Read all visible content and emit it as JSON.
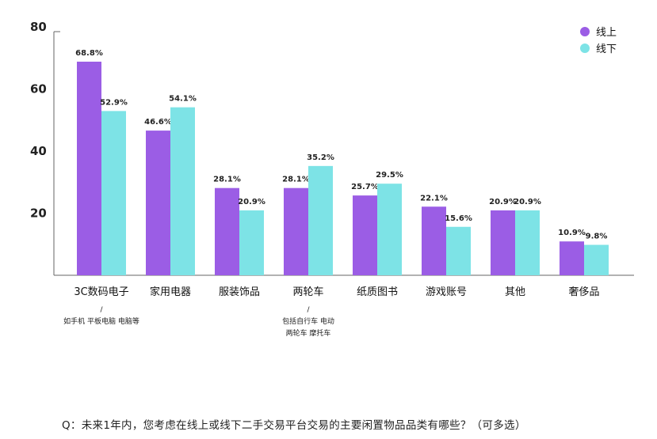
{
  "chart_data": {
    "type": "bar",
    "categories": [
      "3C数码电子",
      "家用电器",
      "服装饰品",
      "两轮车",
      "纸质图书",
      "游戏账号",
      "其他",
      "奢侈品"
    ],
    "category_notes": [
      [
        "/",
        "如手机 平板电脑 电脑等"
      ],
      [],
      [],
      [
        "/",
        "包括自行车 电动",
        "两轮车 摩托车"
      ],
      [],
      [],
      [],
      []
    ],
    "series": [
      {
        "name": "线上",
        "color": "#9b5de5",
        "values": [
          68.8,
          46.6,
          28.1,
          28.1,
          25.7,
          22.1,
          20.9,
          10.9
        ],
        "labels": [
          "68.8%",
          "46.6%",
          "28.1%",
          "28.1%",
          "25.7%",
          "22.1%",
          "20.9%",
          "10.9%"
        ]
      },
      {
        "name": "线下",
        "color": "#7de3e6",
        "values": [
          52.9,
          54.1,
          20.9,
          35.2,
          29.5,
          15.6,
          20.9,
          9.8
        ],
        "labels": [
          "52.9%",
          "54.1%",
          "20.9%",
          "35.2%",
          "29.5%",
          "15.6%",
          "20.9%",
          "9.8%"
        ]
      }
    ],
    "yticks": [
      "20",
      "40",
      "60",
      "80"
    ],
    "ylim": [
      0,
      80
    ],
    "legend_position": "top-right",
    "grid": false
  },
  "question": "Q：未来1年内，您考虑在线上或线下二手交易平台交易的主要闲置物品品类有哪些？（可多选）"
}
